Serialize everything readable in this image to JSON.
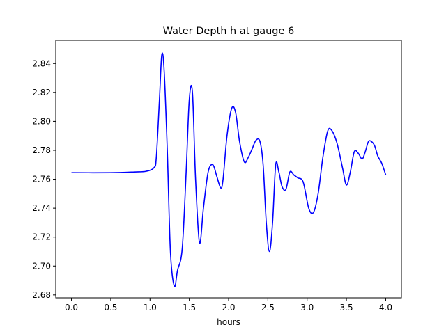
{
  "chart_data": {
    "type": "line",
    "title": "Water Depth h at gauge 6",
    "xlabel": "hours",
    "ylabel": "",
    "xlim": [
      -0.2,
      4.2
    ],
    "ylim": [
      2.678,
      2.856
    ],
    "xticks": [
      0.0,
      0.5,
      1.0,
      1.5,
      2.0,
      2.5,
      3.0,
      3.5,
      4.0
    ],
    "xtick_labels": [
      "0.0",
      "0.5",
      "1.0",
      "1.5",
      "2.0",
      "2.5",
      "3.0",
      "3.5",
      "4.0"
    ],
    "yticks": [
      2.68,
      2.7,
      2.72,
      2.74,
      2.76,
      2.78,
      2.8,
      2.82,
      2.84
    ],
    "ytick_labels": [
      "2.68",
      "2.70",
      "2.72",
      "2.74",
      "2.76",
      "2.78",
      "2.80",
      "2.82",
      "2.84"
    ],
    "grid": false,
    "series": [
      {
        "color": "#0000ff",
        "x": [
          0.0,
          0.5,
          0.8,
          0.95,
          1.05,
          1.08,
          1.12,
          1.15,
          1.18,
          1.22,
          1.26,
          1.31,
          1.35,
          1.41,
          1.46,
          1.5,
          1.54,
          1.58,
          1.63,
          1.68,
          1.74,
          1.8,
          1.85,
          1.9,
          1.93,
          1.98,
          2.04,
          2.09,
          2.14,
          2.2,
          2.25,
          2.3,
          2.35,
          2.4,
          2.44,
          2.48,
          2.52,
          2.56,
          2.6,
          2.64,
          2.68,
          2.73,
          2.78,
          2.83,
          2.88,
          2.95,
          3.02,
          3.08,
          3.14,
          3.2,
          3.26,
          3.31,
          3.38,
          3.45,
          3.5,
          3.55,
          3.6,
          3.65,
          3.7,
          3.74,
          3.78,
          3.82,
          3.86,
          3.9,
          3.95,
          4.0
        ],
        "y": [
          2.7645,
          2.7645,
          2.765,
          2.7655,
          2.768,
          2.775,
          2.815,
          2.846,
          2.835,
          2.78,
          2.71,
          2.686,
          2.697,
          2.712,
          2.765,
          2.815,
          2.82,
          2.76,
          2.716,
          2.74,
          2.765,
          2.77,
          2.762,
          2.754,
          2.76,
          2.79,
          2.809,
          2.806,
          2.786,
          2.772,
          2.775,
          2.781,
          2.787,
          2.786,
          2.77,
          2.73,
          2.71,
          2.73,
          2.77,
          2.765,
          2.755,
          2.753,
          2.765,
          2.763,
          2.761,
          2.758,
          2.74,
          2.737,
          2.75,
          2.775,
          2.793,
          2.794,
          2.785,
          2.768,
          2.756,
          2.765,
          2.779,
          2.778,
          2.774,
          2.779,
          2.786,
          2.786,
          2.783,
          2.776,
          2.771,
          2.763
        ]
      }
    ]
  }
}
